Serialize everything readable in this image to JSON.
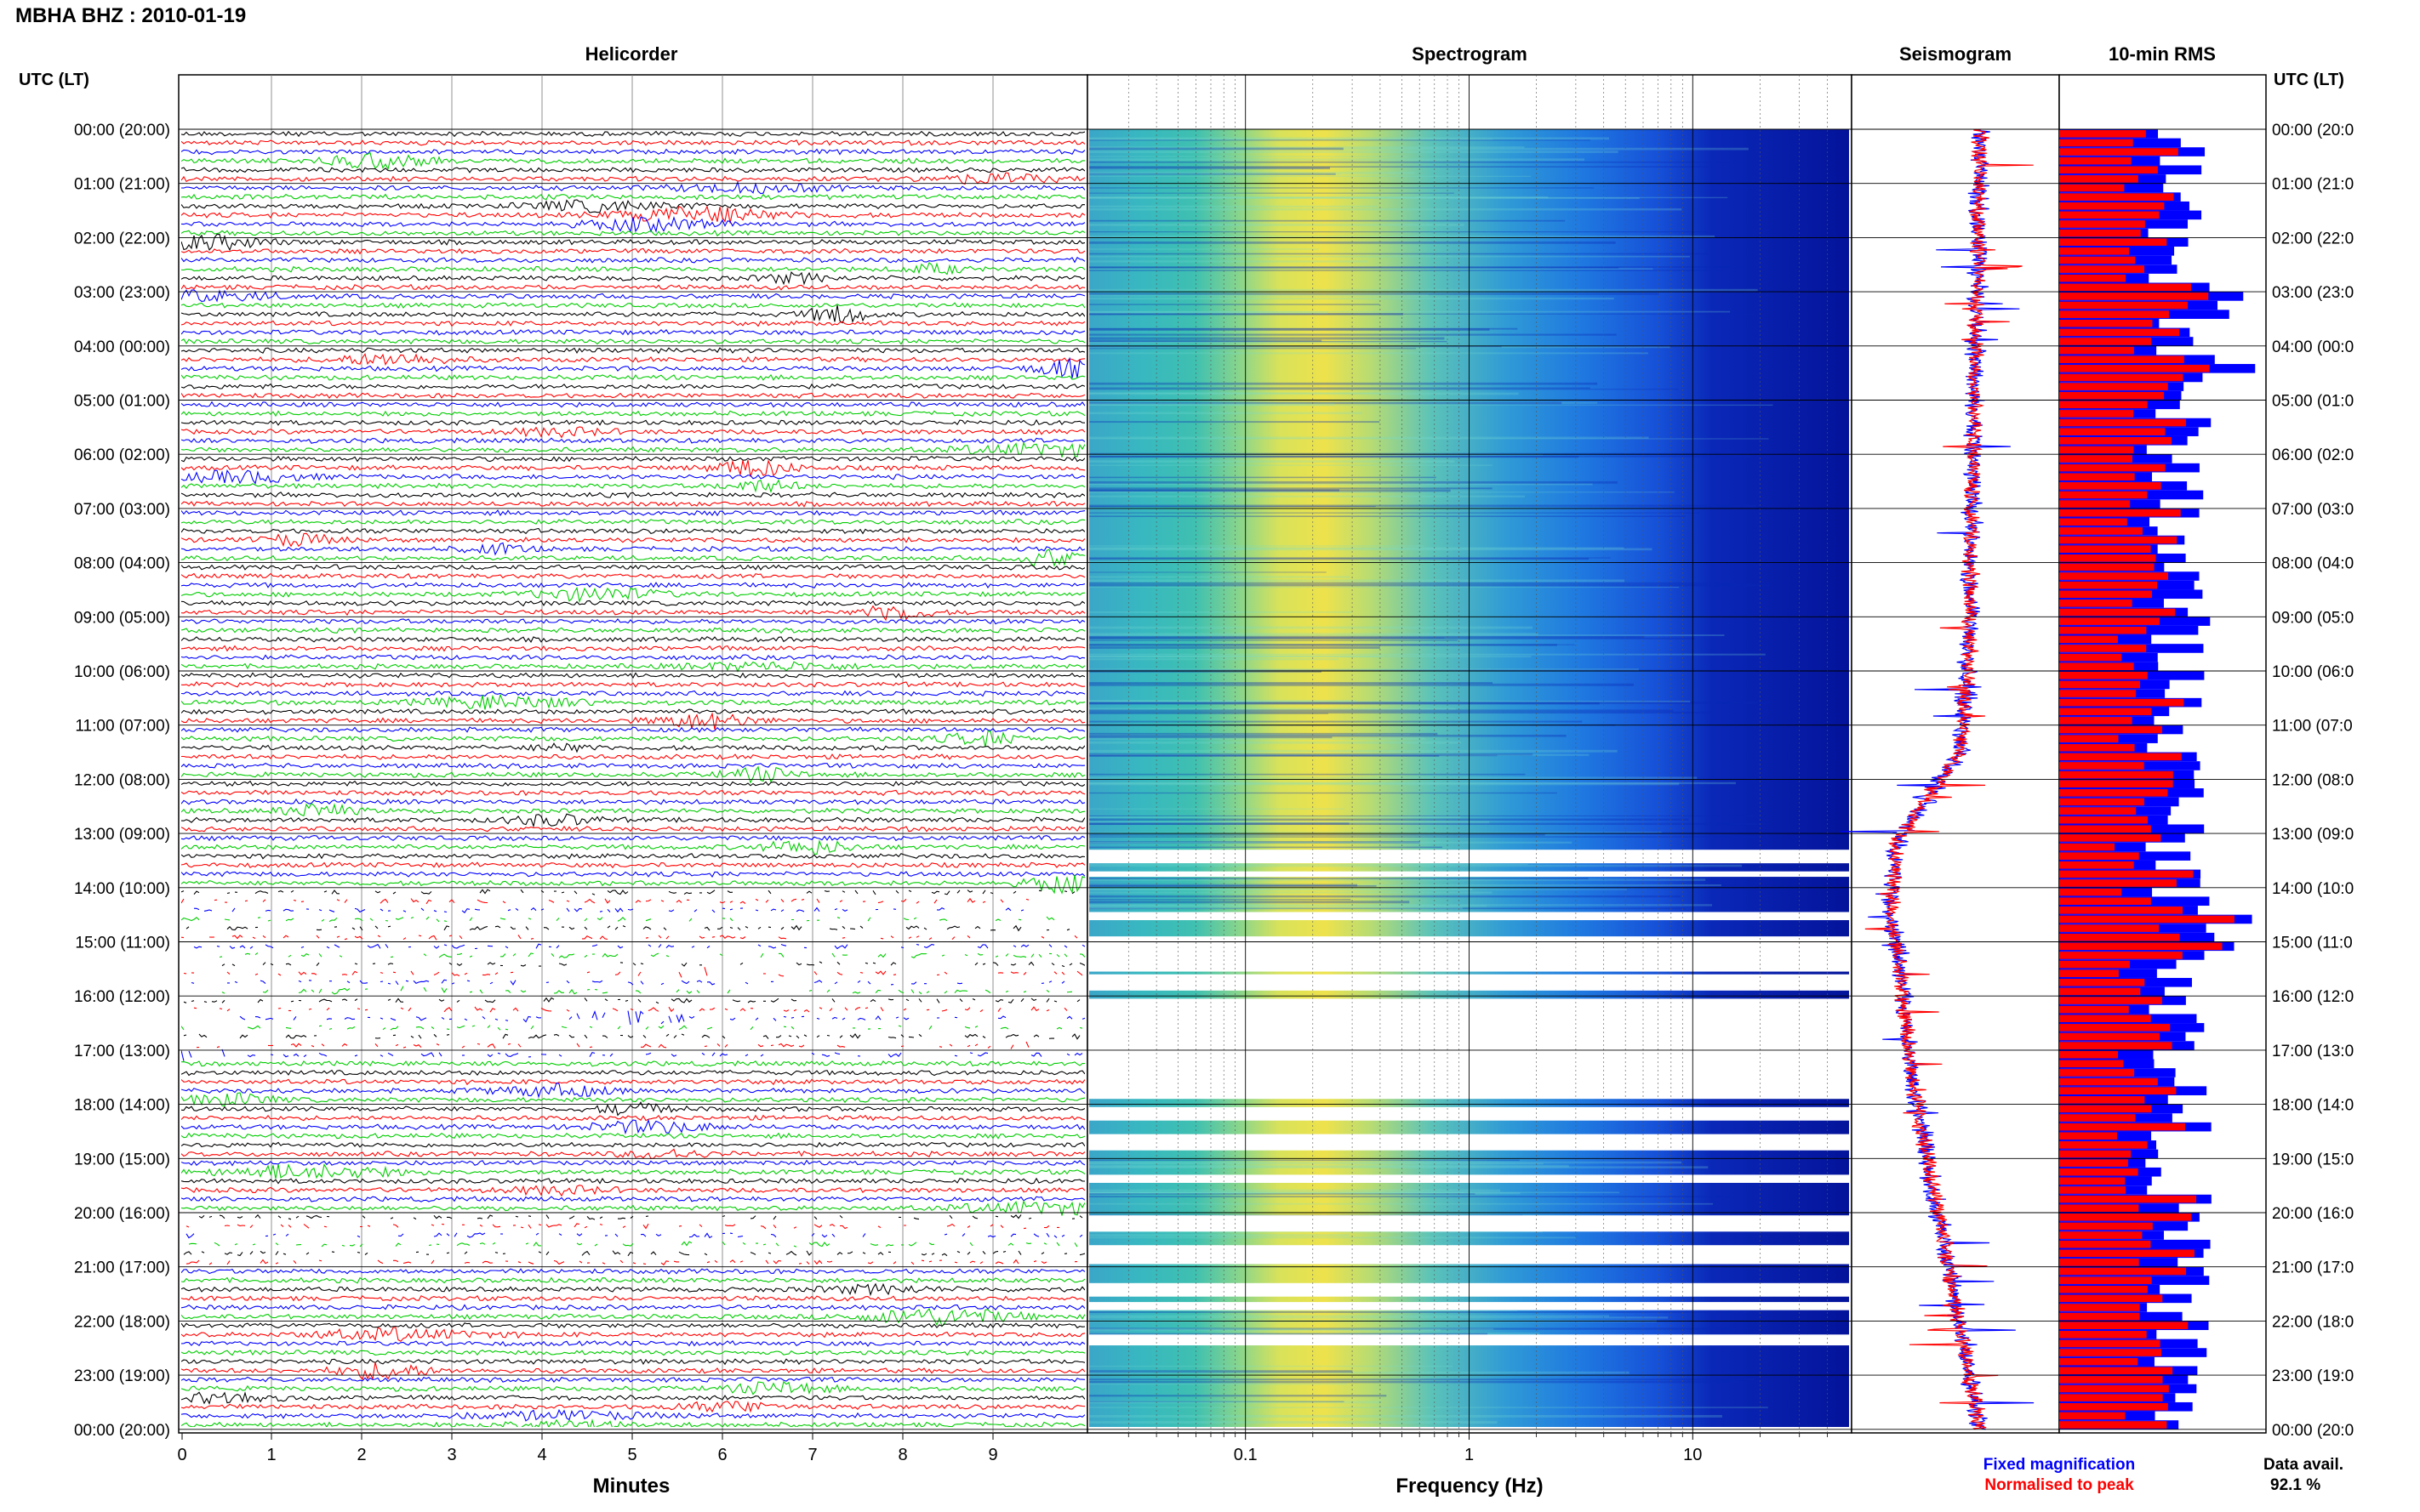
{
  "header": {
    "station_title": "MBHA BHZ : 2010-01-19",
    "utc_label_left": "UTC (LT)",
    "utc_label_right": "UTC (LT)"
  },
  "panels": {
    "helicorder": "Helicorder",
    "spectrogram": "Spectrogram",
    "seismogram": "Seismogram",
    "rms": "10-min RMS"
  },
  "footer": {
    "minutes_label": "Minutes",
    "frequency_label": "Frequency (Hz)",
    "legend_fixed": "Fixed magnification",
    "legend_normalised": "Normalised to peak",
    "data_avail_label": "Data avail.",
    "data_avail_value": "92.1 %"
  },
  "colors": {
    "fixed": "#0000ff",
    "normalised": "#ff0000",
    "trace_cycle": [
      "#000000",
      "#ff0000",
      "#0000ff",
      "#00cc00"
    ]
  },
  "time_labels_left": [
    "00:00 (20:00)",
    "01:00 (21:00)",
    "02:00 (22:00)",
    "03:00 (23:00)",
    "04:00 (00:00)",
    "05:00 (01:00)",
    "06:00 (02:00)",
    "07:00 (03:00)",
    "08:00 (04:00)",
    "09:00 (05:00)",
    "10:00 (06:00)",
    "11:00 (07:00)",
    "12:00 (08:00)",
    "13:00 (09:00)",
    "14:00 (10:00)",
    "15:00 (11:00)",
    "16:00 (12:00)",
    "17:00 (13:00)",
    "18:00 (14:00)",
    "19:00 (15:00)",
    "20:00 (16:00)",
    "21:00 (17:00)",
    "22:00 (18:00)",
    "23:00 (19:00)",
    "00:00 (20:00)"
  ],
  "time_labels_right": [
    "00:00 (20:0",
    "01:00 (21:0",
    "02:00 (22:0",
    "03:00 (23:0",
    "04:00 (00:0",
    "05:00 (01:0",
    "06:00 (02:0",
    "07:00 (03:0",
    "08:00 (04:0",
    "09:00 (05:0",
    "10:00 (06:0",
    "11:00 (07:0",
    "12:00 (08:0",
    "13:00 (09:0",
    "14:00 (10:0",
    "15:00 (11:0",
    "16:00 (12:0",
    "17:00 (13:0",
    "18:00 (14:0",
    "19:00 (15:0",
    "20:00 (16:0",
    "21:00 (17:0",
    "22:00 (18:0",
    "23:00 (19:0",
    "00:00 (20:0"
  ],
  "chart_data": [
    {
      "type": "line",
      "panel": "helicorder",
      "title": "Helicorder",
      "xlabel": "Minutes",
      "x_ticks": [
        "0",
        "1",
        "2",
        "3",
        "4",
        "5",
        "6",
        "7",
        "8",
        "9"
      ],
      "xlim": [
        0,
        10
      ],
      "rows_per_hour": 6,
      "hours": 24,
      "grid": true
    },
    {
      "type": "heatmap",
      "panel": "spectrogram",
      "title": "Spectrogram",
      "xlabel": "Frequency (Hz)",
      "x_scale": "log",
      "xlim": [
        0.02,
        50
      ],
      "x_ticks": [
        "0.1",
        "1",
        "10"
      ],
      "colormap": "jet",
      "grid": true
    },
    {
      "type": "line",
      "panel": "seismogram",
      "title": "Seismogram",
      "series": [
        {
          "name": "Fixed magnification",
          "color": "#0000ff"
        },
        {
          "name": "Normalised to peak",
          "color": "#ff0000"
        }
      ]
    },
    {
      "type": "bar",
      "panel": "rms",
      "title": "10-min RMS",
      "orientation": "horizontal",
      "series": [
        {
          "name": "Fixed magnification",
          "color": "#0000ff"
        },
        {
          "name": "Normalised to peak",
          "color": "#ff0000"
        }
      ]
    }
  ]
}
